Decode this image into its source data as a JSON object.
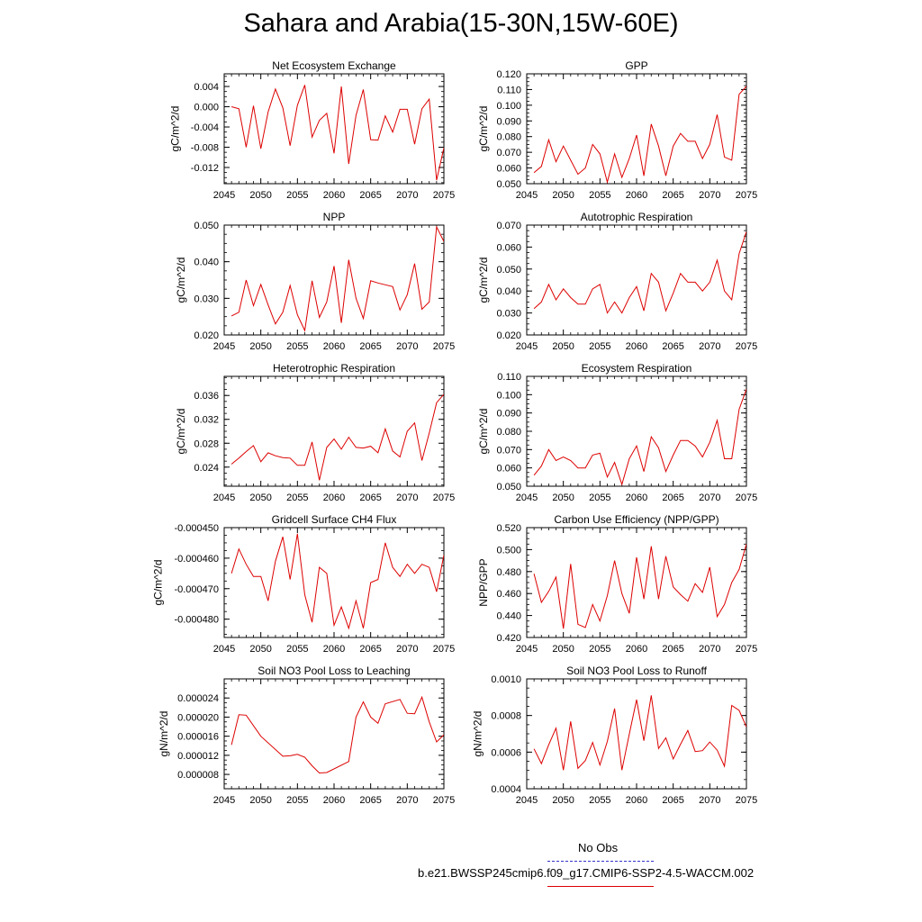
{
  "title": "Sahara and Arabia(15-30N,15W-60E)",
  "legend": {
    "obs_label": "No Obs",
    "obs_color": "#3333cc",
    "model_label": "b.e21.BWSSP245cmip6.f09_g17.CMIP6-SSP2-4.5-WACCM.002",
    "model_color": "#dd0000"
  },
  "chart_data": [
    {
      "type": "line",
      "title": "Net Ecosystem Exchange",
      "ylabel": "gC/m^2/d",
      "xlim": [
        2045,
        2075
      ],
      "ylim": [
        -0.0152,
        0.0065
      ],
      "xticks": [
        2045,
        2050,
        2055,
        2060,
        2065,
        2070,
        2075
      ],
      "xtick_labels": [
        "2045",
        "2050",
        "2055",
        "2060",
        "2065",
        "2070",
        "2075"
      ],
      "yticks": [
        0.004,
        0.0,
        -0.004,
        -0.008,
        -0.012
      ],
      "ytick_labels": [
        "0.004",
        "0.000",
        "-0.004",
        "-0.008",
        "-0.012"
      ],
      "series": [
        {
          "x": [
            2046,
            2047,
            2048,
            2049,
            2050,
            2051,
            2052,
            2053,
            2054,
            2055,
            2056,
            2057,
            2058,
            2059,
            2060,
            2061,
            2062,
            2063,
            2064,
            2065,
            2066,
            2067,
            2068,
            2069,
            2070,
            2071,
            2072,
            2073,
            2074,
            2075
          ],
          "values": [
            0.0,
            -0.0004,
            -0.008,
            0.0002,
            -0.0083,
            -0.001,
            0.0035,
            -0.0002,
            -0.0077,
            0.0003,
            0.0043,
            -0.006,
            -0.0027,
            -0.0013,
            -0.0092,
            0.004,
            -0.0113,
            -0.0017,
            0.0034,
            -0.0065,
            -0.0066,
            -0.0018,
            -0.005,
            -0.0005,
            -0.0005,
            -0.0074,
            -0.0004,
            0.0015,
            -0.0145,
            -0.0081
          ]
        }
      ]
    },
    {
      "type": "line",
      "title": "GPP",
      "ylabel": "gC/m^2/d",
      "xlim": [
        2045,
        2075
      ],
      "ylim": [
        0.05,
        0.12
      ],
      "xticks": [
        2045,
        2050,
        2055,
        2060,
        2065,
        2070,
        2075
      ],
      "xtick_labels": [
        "2045",
        "2050",
        "2055",
        "2060",
        "2065",
        "2070",
        "2075"
      ],
      "yticks": [
        0.05,
        0.06,
        0.07,
        0.08,
        0.09,
        0.1,
        0.11,
        0.12
      ],
      "ytick_labels": [
        "0.050",
        "0.060",
        "0.070",
        "0.080",
        "0.090",
        "0.100",
        "0.110",
        "0.120"
      ],
      "series": [
        {
          "x": [
            2046,
            2047,
            2048,
            2049,
            2050,
            2051,
            2052,
            2053,
            2054,
            2055,
            2056,
            2057,
            2058,
            2059,
            2060,
            2061,
            2062,
            2063,
            2064,
            2065,
            2066,
            2067,
            2068,
            2069,
            2070,
            2071,
            2072,
            2073,
            2074,
            2075
          ],
          "values": [
            0.057,
            0.061,
            0.078,
            0.064,
            0.074,
            0.065,
            0.056,
            0.06,
            0.075,
            0.069,
            0.051,
            0.069,
            0.054,
            0.066,
            0.081,
            0.055,
            0.088,
            0.074,
            0.055,
            0.074,
            0.082,
            0.077,
            0.077,
            0.066,
            0.075,
            0.094,
            0.067,
            0.065,
            0.107,
            0.112
          ]
        }
      ]
    },
    {
      "type": "line",
      "title": "NPP",
      "ylabel": "gC/m^2/d",
      "xlim": [
        2045,
        2075
      ],
      "ylim": [
        0.02,
        0.05
      ],
      "xticks": [
        2045,
        2050,
        2055,
        2060,
        2065,
        2070,
        2075
      ],
      "xtick_labels": [
        "2045",
        "2050",
        "2055",
        "2060",
        "2065",
        "2070",
        "2075"
      ],
      "yticks": [
        0.02,
        0.03,
        0.04,
        0.05
      ],
      "ytick_labels": [
        "0.020",
        "0.030",
        "0.040",
        "0.050"
      ],
      "series": [
        {
          "x": [
            2046,
            2047,
            2048,
            2049,
            2050,
            2051,
            2052,
            2053,
            2054,
            2055,
            2056,
            2057,
            2058,
            2059,
            2060,
            2061,
            2062,
            2063,
            2064,
            2065,
            2066,
            2067,
            2068,
            2069,
            2070,
            2071,
            2072,
            2073,
            2074,
            2075
          ],
          "values": [
            0.0252,
            0.0262,
            0.035,
            0.028,
            0.0338,
            0.0282,
            0.023,
            0.0262,
            0.0335,
            0.0255,
            0.0212,
            0.0348,
            0.0248,
            0.029,
            0.0388,
            0.0233,
            0.0405,
            0.03,
            0.0245,
            0.0348,
            0.0342,
            0.0337,
            0.0332,
            0.0268,
            0.031,
            0.0395,
            0.027,
            0.029,
            0.0495,
            0.0455
          ]
        }
      ]
    },
    {
      "type": "line",
      "title": "Autotrophic Respiration",
      "ylabel": "gC/m^2/d",
      "xlim": [
        2045,
        2075
      ],
      "ylim": [
        0.02,
        0.07
      ],
      "xticks": [
        2045,
        2050,
        2055,
        2060,
        2065,
        2070,
        2075
      ],
      "xtick_labels": [
        "2045",
        "2050",
        "2055",
        "2060",
        "2065",
        "2070",
        "2075"
      ],
      "yticks": [
        0.02,
        0.03,
        0.04,
        0.05,
        0.06,
        0.07
      ],
      "ytick_labels": [
        "0.020",
        "0.030",
        "0.040",
        "0.050",
        "0.060",
        "0.070"
      ],
      "series": [
        {
          "x": [
            2046,
            2047,
            2048,
            2049,
            2050,
            2051,
            2052,
            2053,
            2054,
            2055,
            2056,
            2057,
            2058,
            2059,
            2060,
            2061,
            2062,
            2063,
            2064,
            2065,
            2066,
            2067,
            2068,
            2069,
            2070,
            2071,
            2072,
            2073,
            2074,
            2075
          ],
          "values": [
            0.032,
            0.035,
            0.043,
            0.036,
            0.041,
            0.037,
            0.034,
            0.034,
            0.041,
            0.043,
            0.03,
            0.035,
            0.03,
            0.037,
            0.042,
            0.031,
            0.048,
            0.044,
            0.031,
            0.039,
            0.048,
            0.044,
            0.044,
            0.04,
            0.044,
            0.054,
            0.04,
            0.036,
            0.057,
            0.067
          ]
        }
      ]
    },
    {
      "type": "line",
      "title": "Heterotrophic Respiration",
      "ylabel": "gC/m^2/d",
      "xlim": [
        2045,
        2075
      ],
      "ylim": [
        0.0208,
        0.0392
      ],
      "xticks": [
        2045,
        2050,
        2055,
        2060,
        2065,
        2070,
        2075
      ],
      "xtick_labels": [
        "2045",
        "2050",
        "2055",
        "2060",
        "2065",
        "2070",
        "2075"
      ],
      "yticks": [
        0.024,
        0.028,
        0.032,
        0.036
      ],
      "ytick_labels": [
        "0.024",
        "0.028",
        "0.032",
        "0.036"
      ],
      "series": [
        {
          "x": [
            2046,
            2047,
            2048,
            2049,
            2050,
            2051,
            2052,
            2053,
            2054,
            2055,
            2056,
            2057,
            2058,
            2059,
            2060,
            2061,
            2062,
            2063,
            2064,
            2065,
            2066,
            2067,
            2068,
            2069,
            2070,
            2071,
            2072,
            2073,
            2074,
            2075
          ],
          "values": [
            0.0245,
            0.0255,
            0.0266,
            0.0276,
            0.0249,
            0.0264,
            0.0259,
            0.0256,
            0.0255,
            0.0243,
            0.0243,
            0.0282,
            0.0218,
            0.0273,
            0.0287,
            0.027,
            0.029,
            0.0273,
            0.0272,
            0.0275,
            0.0264,
            0.0304,
            0.0267,
            0.0257,
            0.03,
            0.0314,
            0.0251,
            0.0297,
            0.0348,
            0.0362
          ]
        }
      ]
    },
    {
      "type": "line",
      "title": "Ecosystem Respiration",
      "ylabel": "gC/m^2/d",
      "xlim": [
        2045,
        2075
      ],
      "ylim": [
        0.05,
        0.11
      ],
      "xticks": [
        2045,
        2050,
        2055,
        2060,
        2065,
        2070,
        2075
      ],
      "xtick_labels": [
        "2045",
        "2050",
        "2055",
        "2060",
        "2065",
        "2070",
        "2075"
      ],
      "yticks": [
        0.05,
        0.06,
        0.07,
        0.08,
        0.09,
        0.1,
        0.11
      ],
      "ytick_labels": [
        "0.050",
        "0.060",
        "0.070",
        "0.080",
        "0.090",
        "0.100",
        "0.110"
      ],
      "series": [
        {
          "x": [
            2046,
            2047,
            2048,
            2049,
            2050,
            2051,
            2052,
            2053,
            2054,
            2055,
            2056,
            2057,
            2058,
            2059,
            2060,
            2061,
            2062,
            2063,
            2064,
            2065,
            2066,
            2067,
            2068,
            2069,
            2070,
            2071,
            2072,
            2073,
            2074,
            2075
          ],
          "values": [
            0.056,
            0.061,
            0.07,
            0.064,
            0.066,
            0.064,
            0.06,
            0.06,
            0.067,
            0.068,
            0.055,
            0.063,
            0.051,
            0.065,
            0.072,
            0.058,
            0.077,
            0.071,
            0.058,
            0.067,
            0.075,
            0.075,
            0.072,
            0.066,
            0.074,
            0.086,
            0.065,
            0.065,
            0.092,
            0.103
          ]
        }
      ]
    },
    {
      "type": "line",
      "title": "Gridcell Surface CH4 Flux",
      "ylabel": "gC/m^2/d",
      "xlim": [
        2045,
        2075
      ],
      "ylim": [
        -0.000486,
        -0.00045
      ],
      "xticks": [
        2045,
        2050,
        2055,
        2060,
        2065,
        2070,
        2075
      ],
      "xtick_labels": [
        "2045",
        "2050",
        "2055",
        "2060",
        "2065",
        "2070",
        "2075"
      ],
      "yticks": [
        -0.00045,
        -0.00046,
        -0.00047,
        -0.00048
      ],
      "ytick_labels": [
        "-0.000450",
        "-0.000460",
        "-0.000470",
        "-0.000480"
      ],
      "series": [
        {
          "x": [
            2046,
            2047,
            2048,
            2049,
            2050,
            2051,
            2052,
            2053,
            2054,
            2055,
            2056,
            2057,
            2058,
            2059,
            2060,
            2061,
            2062,
            2063,
            2064,
            2065,
            2066,
            2067,
            2068,
            2069,
            2070,
            2071,
            2072,
            2073,
            2074,
            2075
          ],
          "values": [
            -0.000465,
            -0.000457,
            -0.000462,
            -0.000466,
            -0.000466,
            -0.000474,
            -0.000461,
            -0.000453,
            -0.000467,
            -0.000452,
            -0.000472,
            -0.000481,
            -0.000463,
            -0.000465,
            -0.000482,
            -0.000476,
            -0.000483,
            -0.000474,
            -0.000483,
            -0.000468,
            -0.000467,
            -0.000455,
            -0.000463,
            -0.000466,
            -0.000462,
            -0.000465,
            -0.000462,
            -0.000463,
            -0.000471,
            -0.000459
          ]
        }
      ]
    },
    {
      "type": "line",
      "title": "Carbon Use Efficiency (NPP/GPP)",
      "ylabel": "NPP/GPP",
      "xlim": [
        2045,
        2075
      ],
      "ylim": [
        0.42,
        0.52
      ],
      "xticks": [
        2045,
        2050,
        2055,
        2060,
        2065,
        2070,
        2075
      ],
      "xtick_labels": [
        "2045",
        "2050",
        "2055",
        "2060",
        "2065",
        "2070",
        "2075"
      ],
      "yticks": [
        0.42,
        0.44,
        0.46,
        0.48,
        0.5,
        0.52
      ],
      "ytick_labels": [
        "0.420",
        "0.440",
        "0.460",
        "0.480",
        "0.500",
        "0.520"
      ],
      "series": [
        {
          "x": [
            2046,
            2047,
            2048,
            2049,
            2050,
            2051,
            2052,
            2053,
            2054,
            2055,
            2056,
            2057,
            2058,
            2059,
            2060,
            2061,
            2062,
            2063,
            2064,
            2065,
            2066,
            2067,
            2068,
            2069,
            2070,
            2071,
            2072,
            2073,
            2074,
            2075
          ],
          "values": [
            0.478,
            0.452,
            0.462,
            0.475,
            0.428,
            0.487,
            0.432,
            0.429,
            0.45,
            0.435,
            0.458,
            0.49,
            0.46,
            0.442,
            0.493,
            0.455,
            0.503,
            0.455,
            0.494,
            0.466,
            0.459,
            0.453,
            0.469,
            0.461,
            0.484,
            0.439,
            0.45,
            0.47,
            0.482,
            0.505
          ]
        }
      ]
    },
    {
      "type": "line",
      "title": "Soil NO3 Pool Loss to Leaching",
      "ylabel": "gN/m^2/d",
      "xlim": [
        2045,
        2075
      ],
      "ylim": [
        5e-06,
        2.8e-05
      ],
      "xticks": [
        2045,
        2050,
        2055,
        2060,
        2065,
        2070,
        2075
      ],
      "xtick_labels": [
        "2045",
        "2050",
        "2055",
        "2060",
        "2065",
        "2070",
        "2075"
      ],
      "yticks": [
        8e-06,
        1.2e-05,
        1.6e-05,
        2e-05,
        2.4e-05
      ],
      "ytick_labels": [
        "0.000008",
        "0.000012",
        "0.000016",
        "0.000020",
        "0.000024"
      ],
      "series": [
        {
          "x": [
            2046,
            2047,
            2048,
            2050,
            2053,
            2054,
            2055,
            2056,
            2057,
            2058,
            2059,
            2062,
            2063,
            2064,
            2065,
            2066,
            2067,
            2069,
            2070,
            2071,
            2072,
            2073,
            2074,
            2075
          ],
          "values": [
            1.42e-05,
            2.05e-05,
            2.04e-05,
            1.6e-05,
            1.18e-05,
            1.19e-05,
            1.22e-05,
            1.16e-05,
            9.8e-06,
            8.3e-06,
            8.4e-06,
            1.07e-05,
            2e-05,
            2.32e-05,
            2e-05,
            1.87e-05,
            2.28e-05,
            2.37e-05,
            2.08e-05,
            2.07e-05,
            2.42e-05,
            1.9e-05,
            1.48e-05,
            1.63e-05
          ]
        }
      ]
    },
    {
      "type": "line",
      "title": "Soil NO3 Pool Loss to Runoff",
      "ylabel": "gN/m^2/d",
      "xlim": [
        2045,
        2075
      ],
      "ylim": [
        0.0004,
        0.001
      ],
      "xticks": [
        2045,
        2050,
        2055,
        2060,
        2065,
        2070,
        2075
      ],
      "xtick_labels": [
        "2045",
        "2050",
        "2055",
        "2060",
        "2065",
        "2070",
        "2075"
      ],
      "yticks": [
        0.0004,
        0.0006,
        0.0008,
        0.001
      ],
      "ytick_labels": [
        "0.0004",
        "0.0006",
        "0.0008",
        "0.0010"
      ],
      "series": [
        {
          "x": [
            2046,
            2047,
            2048,
            2049,
            2050,
            2051,
            2052,
            2053,
            2054,
            2055,
            2056,
            2057,
            2058,
            2059,
            2060,
            2061,
            2062,
            2063,
            2064,
            2065,
            2066,
            2067,
            2068,
            2069,
            2070,
            2071,
            2072,
            2073,
            2074,
            2075
          ],
          "values": [
            0.000618,
            0.000537,
            0.00064,
            0.000731,
            0.000502,
            0.000768,
            0.000511,
            0.000554,
            0.000653,
            0.00053,
            0.000658,
            0.000838,
            0.000502,
            0.000698,
            0.000887,
            0.000662,
            0.00091,
            0.00062,
            0.000678,
            0.000563,
            0.000643,
            0.000718,
            0.000603,
            0.000608,
            0.000655,
            0.000611,
            0.000523,
            0.000855,
            0.000828,
            0.000738
          ]
        }
      ]
    }
  ]
}
